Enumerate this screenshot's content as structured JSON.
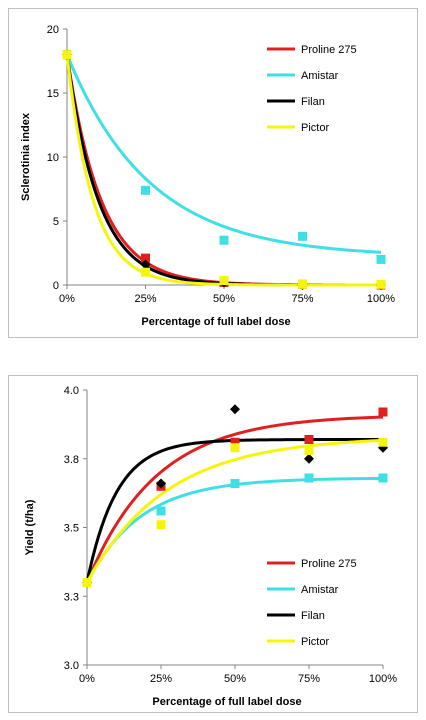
{
  "chart_data": [
    {
      "type": "scatter",
      "xlabel": "Percentage of full label dose",
      "ylabel": "Sclerotinia index",
      "x": [
        0,
        25,
        50,
        75,
        100
      ],
      "x_ticks": [
        "0%",
        "25%",
        "50%",
        "75%",
        "100%"
      ],
      "y_ticks": [
        "0",
        "5",
        "10",
        "15",
        "20"
      ],
      "xlim": [
        0,
        100
      ],
      "ylim": [
        0,
        20
      ],
      "legend_position": "top-right",
      "grid": false,
      "trendlines": true,
      "series": [
        {
          "name": "Proline 275",
          "color": "#e02020",
          "marker": "square",
          "values": [
            18,
            2.1,
            0.2,
            0.05,
            0.0
          ],
          "fit": {
            "a": 18,
            "k": 0.092,
            "c": 0.0
          }
        },
        {
          "name": "Amistar",
          "color": "#3fdfe6",
          "marker": "square",
          "values": [
            18,
            7.4,
            3.5,
            3.8,
            2.0
          ],
          "fit": {
            "a": 15.8,
            "k": 0.038,
            "c": 2.2
          }
        },
        {
          "name": "Filan",
          "color": "#000000",
          "marker": "diamond",
          "values": [
            18,
            1.6,
            0.2,
            0.0,
            0.0
          ],
          "fit": {
            "a": 18,
            "k": 0.1,
            "c": 0.0
          }
        },
        {
          "name": "Pictor",
          "color": "#f5f50a",
          "marker": "square",
          "values": [
            18,
            1.0,
            0.35,
            0.05,
            0.05
          ],
          "fit": {
            "a": 18,
            "k": 0.12,
            "c": 0.0
          }
        }
      ]
    },
    {
      "type": "scatter",
      "xlabel": "Percentage of full label dose",
      "ylabel": "Yield (t/ha)",
      "x": [
        0,
        25,
        50,
        75,
        100
      ],
      "x_ticks": [
        "0%",
        "25%",
        "50%",
        "75%",
        "100%"
      ],
      "y_ticks": [
        "3.0",
        "3.3",
        "3.5",
        "3.8",
        "4.0"
      ],
      "xlim": [
        0,
        100
      ],
      "ylim": [
        3.0,
        4.0
      ],
      "legend_position": "bottom-right",
      "grid": false,
      "trendlines": true,
      "series": [
        {
          "name": "Proline 275",
          "color": "#e02020",
          "marker": "square",
          "values": [
            3.3,
            3.65,
            3.81,
            3.82,
            3.92
          ],
          "fit": {
            "c": 3.91,
            "a": 0.61,
            "k": 0.043
          }
        },
        {
          "name": "Amistar",
          "color": "#3fdfe6",
          "marker": "square",
          "values": [
            3.3,
            3.56,
            3.66,
            3.68,
            3.68
          ],
          "fit": {
            "c": 3.68,
            "a": 0.38,
            "k": 0.055
          }
        },
        {
          "name": "Filan",
          "color": "#000000",
          "marker": "diamond",
          "values": [
            3.3,
            3.66,
            3.93,
            3.75,
            3.79
          ],
          "fit": {
            "c": 3.82,
            "a": 0.52,
            "k": 0.1
          }
        },
        {
          "name": "Pictor",
          "color": "#f5f50a",
          "marker": "square",
          "values": [
            3.3,
            3.51,
            3.79,
            3.78,
            3.81
          ],
          "fit": {
            "c": 3.83,
            "a": 0.53,
            "k": 0.037
          }
        }
      ]
    }
  ]
}
